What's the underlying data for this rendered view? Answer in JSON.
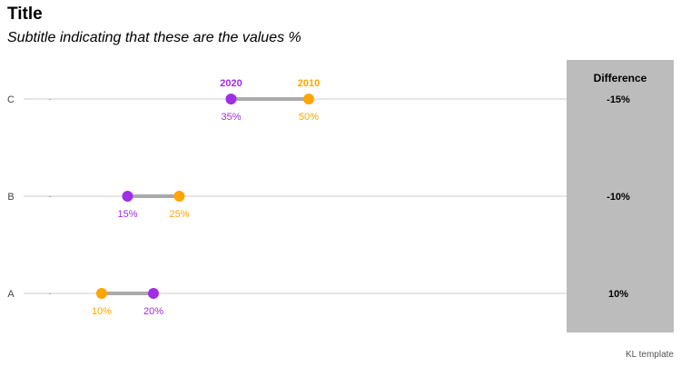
{
  "title": "Title",
  "subtitle": "Subtitle indicating that these are the values %",
  "caption": "KL template",
  "chart_data": {
    "type": "dumbbell",
    "categories": [
      "C",
      "B",
      "A"
    ],
    "xlim": [
      0,
      100
    ],
    "series": [
      {
        "name": "2020",
        "color": "#a02ee6",
        "values": [
          35,
          15,
          20
        ]
      },
      {
        "name": "2010",
        "color": "#ffa500",
        "values": [
          50,
          25,
          10
        ]
      }
    ],
    "value_labels": {
      "2020": [
        "35%",
        "15%",
        "20%"
      ],
      "2010": [
        "50%",
        "25%",
        "10%"
      ]
    },
    "difference": {
      "header": "Difference",
      "values": [
        "-15%",
        "-10%",
        "10%"
      ]
    },
    "category_tick_mark": "-",
    "grid": true
  }
}
